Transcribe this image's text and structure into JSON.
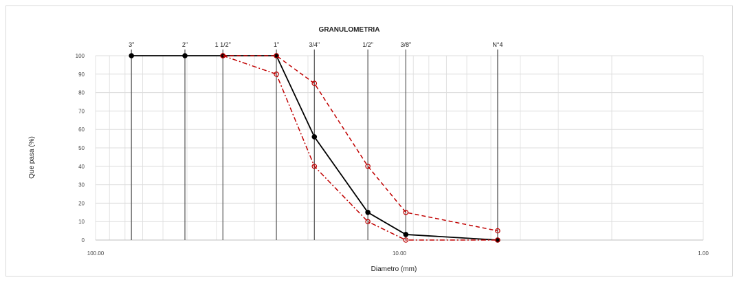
{
  "chart_data": {
    "type": "scatter",
    "title": "GRANULOMETRIA",
    "xlabel": "Diametro (mm)",
    "ylabel": "Que pasa (%)",
    "x_scale": "log",
    "x_reversed": true,
    "xlim": [
      100,
      1
    ],
    "ylim": [
      0,
      100
    ],
    "y_ticks": [
      0,
      10,
      20,
      30,
      40,
      50,
      60,
      70,
      80,
      90,
      100
    ],
    "x_ticks": [
      {
        "value": 100,
        "label": "100.00"
      },
      {
        "value": 10,
        "label": "10.00"
      },
      {
        "value": 1,
        "label": "1.00"
      }
    ],
    "grid": true,
    "sieves": [
      {
        "label": "3\"",
        "size": 76.2
      },
      {
        "label": "2\"",
        "size": 50.8
      },
      {
        "label": "1 1/2\"",
        "size": 38.1
      },
      {
        "label": "1\"",
        "size": 25.4
      },
      {
        "label": "3/4\"",
        "size": 19.05
      },
      {
        "label": "1/2\"",
        "size": 12.7
      },
      {
        "label": "3/8\"",
        "size": 9.525
      },
      {
        "label": "N°4",
        "size": 4.75
      }
    ],
    "series": [
      {
        "color": "#000000",
        "dash": "solid",
        "marker": "filled",
        "points": [
          [
            76.2,
            100
          ],
          [
            50.8,
            100
          ],
          [
            38.1,
            100
          ],
          [
            25.4,
            100
          ],
          [
            19.05,
            56
          ],
          [
            12.7,
            15
          ],
          [
            9.525,
            3
          ],
          [
            4.75,
            0
          ]
        ]
      },
      {
        "color": "#c00000",
        "dash": "dashed",
        "marker": "open",
        "points": [
          [
            38.1,
            100
          ],
          [
            25.4,
            100
          ],
          [
            19.05,
            85
          ],
          [
            12.7,
            40
          ],
          [
            9.525,
            15
          ],
          [
            4.75,
            5
          ]
        ]
      },
      {
        "color": "#c00000",
        "dash": "dashdot",
        "marker": "open",
        "points": [
          [
            38.1,
            100
          ],
          [
            25.4,
            90
          ],
          [
            19.05,
            40
          ],
          [
            12.7,
            10
          ],
          [
            9.525,
            0
          ],
          [
            4.75,
            0
          ]
        ]
      }
    ]
  }
}
